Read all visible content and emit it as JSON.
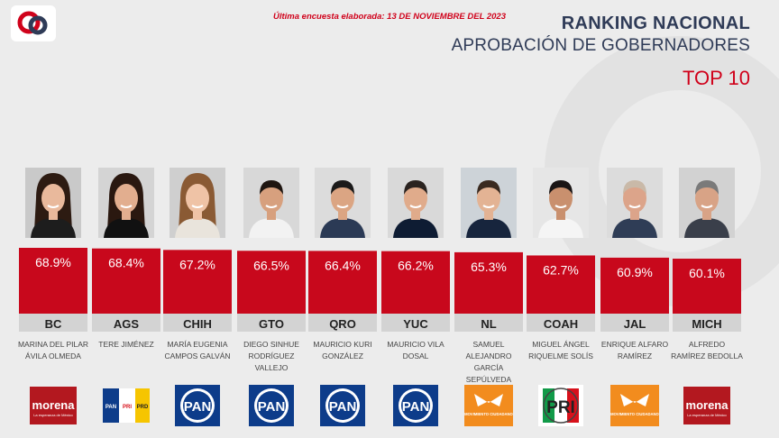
{
  "header": {
    "survey_note": "Última encuesta elaborada: 13 DE NOVIEMBRE DEL 2023",
    "title": "RANKING NACIONAL",
    "subtitle": "APROBACIÓN DE GOBERNADORES",
    "top_label": "TOP 10"
  },
  "colors": {
    "bar": "#c8081c",
    "state_band": "#d3d3d3",
    "title": "#2f3b57",
    "accent": "#d0021b"
  },
  "chart_data": {
    "type": "bar",
    "categories": [
      "BC",
      "AGS",
      "CHIH",
      "GTO",
      "QRO",
      "YUC",
      "NL",
      "COAH",
      "JAL",
      "MICH"
    ],
    "values": [
      68.9,
      68.4,
      67.2,
      66.5,
      66.4,
      66.2,
      65.3,
      62.7,
      60.9,
      60.1
    ],
    "value_labels": [
      "68.9%",
      "68.4%",
      "67.2%",
      "66.5%",
      "66.4%",
      "66.2%",
      "65.3%",
      "62.7%",
      "60.9%",
      "60.1%"
    ],
    "names": [
      "MARINA DEL PILAR ÁVILA OLMEDA",
      "TERE JIMÉNEZ",
      "MARÍA EUGENIA CAMPOS GALVÁN",
      "DIEGO SINHUE RODRÍGUEZ VALLEJO",
      "MAURICIO KURI GONZÁLEZ",
      "MAURICIO VILA DOSAL",
      "SAMUEL ALEJANDRO GARCÍA SEPÚLVEDA",
      "MIGUEL ÁNGEL RIQUELME SOLÍS",
      "ENRIQUE ALFARO RAMÍREZ",
      "ALFREDO RAMÍREZ BEDOLLA"
    ],
    "parties": [
      "morena",
      "pan-prd-pri",
      "pan",
      "pan",
      "pan",
      "pan",
      "mc",
      "pri",
      "mc",
      "morena"
    ]
  },
  "party_labels": {
    "morena": {
      "text": "morena",
      "sub": "La esperanza de México"
    },
    "pan": {
      "text": "PAN"
    },
    "pri": {
      "text": "PRI"
    },
    "mc": {
      "text": "MOVIMIENTO CIUDADANO"
    },
    "coalition": {
      "pan": "PAN",
      "pri": "PRI",
      "prd": "PRD"
    }
  }
}
